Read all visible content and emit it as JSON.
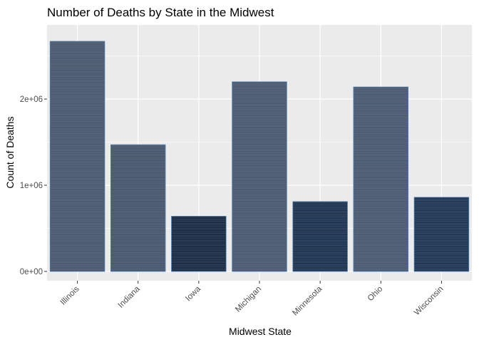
{
  "chart_data": {
    "type": "bar",
    "title": "Number of Deaths by State in the Midwest",
    "xlabel": "Midwest State",
    "ylabel": "Count of Deaths",
    "categories": [
      "Illinois",
      "Indiana",
      "Iowa",
      "Michigan",
      "Minnesota",
      "Ohio",
      "Wisconsin"
    ],
    "values": [
      2670000,
      1470000,
      640000,
      2200000,
      810000,
      2140000,
      860000
    ],
    "ylim": [
      -108000,
      2860000
    ],
    "yticks": [
      0,
      1000000,
      2000000
    ],
    "ytick_labels": [
      "0e+00",
      "1e+06",
      "2e+06"
    ],
    "grid": true,
    "legend": "none",
    "colors": {
      "panel_background": "#ebebeb",
      "grid_major": "#ffffff",
      "bar_fill": [
        "#4a5a72",
        "#485870",
        "#172a45",
        "#4b5b73",
        "#1b3352",
        "#4a5b74",
        "#1d3656"
      ],
      "bar_outline": "#4a7fb5",
      "stripe": "#8a8a8a"
    }
  }
}
